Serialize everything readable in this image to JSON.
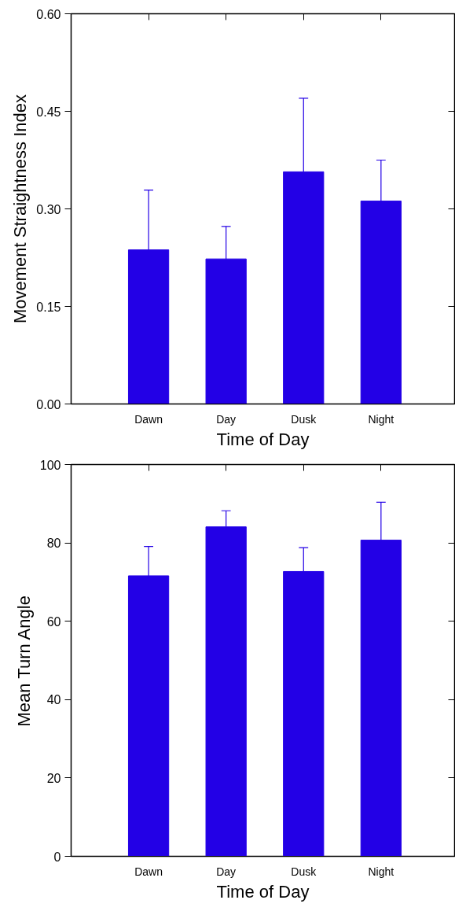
{
  "chart_data": [
    {
      "type": "bar",
      "xlabel": "Time of Day",
      "ylabel": "Movement Straightness Index",
      "categories": [
        "Dawn",
        "Day",
        "Dusk",
        "Night"
      ],
      "values": [
        0.237,
        0.223,
        0.357,
        0.312
      ],
      "errors": [
        0.092,
        0.05,
        0.113,
        0.063
      ],
      "color": "#2300e6",
      "ylim": [
        0,
        0.6
      ],
      "yticks": [
        {
          "value": 0,
          "label": "0.00"
        },
        0.15,
        {
          "value": 0.3,
          "label": "0.30"
        },
        0.45,
        {
          "value": 0.6,
          "label": "0.60"
        }
      ],
      "grid": false
    },
    {
      "type": "bar",
      "xlabel": "Time of Day",
      "ylabel": "Mean Turn Angle",
      "categories": [
        "Dawn",
        "Day",
        "Dusk",
        "Night"
      ],
      "values": [
        71.6,
        84.1,
        72.7,
        80.7
      ],
      "errors": [
        7.5,
        4.1,
        6.1,
        9.7
      ],
      "color": "#2300e6",
      "ylim": [
        0,
        100
      ],
      "yticks": [
        0,
        20,
        40,
        60,
        80,
        100
      ],
      "grid": false
    }
  ]
}
